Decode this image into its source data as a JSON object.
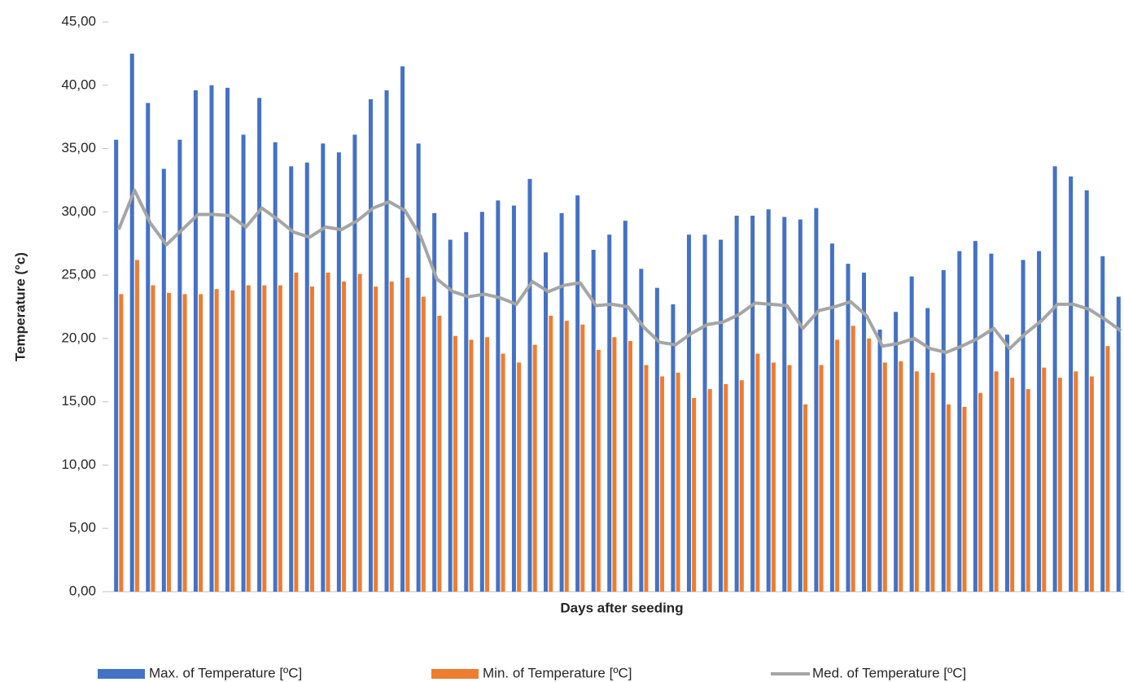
{
  "chart_data": {
    "type": "bar-line",
    "x_label": "Days after seeding",
    "y_label": "Temperature (°c)",
    "categories": [
      null,
      null,
      null,
      null,
      null,
      null,
      null,
      null,
      null,
      null,
      null,
      null,
      null,
      null,
      null,
      null,
      null,
      null,
      null,
      null,
      null,
      null,
      null,
      null,
      null,
      null,
      null,
      null,
      null,
      null,
      null,
      null,
      null,
      null,
      null,
      null,
      null,
      null,
      null,
      null,
      null,
      null,
      null,
      null,
      null,
      null,
      null,
      null,
      null,
      null,
      null,
      null,
      null,
      null,
      null,
      null,
      null,
      null,
      null,
      null,
      null,
      null,
      null,
      null
    ],
    "series": [
      {
        "name": "Max. of Temperature [ºC]",
        "type": "bar",
        "color": "#4472c4",
        "values": [
          35.7,
          42.5,
          38.6,
          33.4,
          35.7,
          39.6,
          40.0,
          39.8,
          36.1,
          39.0,
          35.5,
          33.6,
          33.9,
          35.4,
          34.7,
          36.1,
          38.9,
          39.6,
          41.5,
          35.4,
          29.9,
          27.8,
          28.4,
          30.0,
          30.9,
          30.5,
          32.6,
          26.8,
          29.9,
          31.3,
          27.0,
          28.2,
          29.3,
          25.5,
          24.0,
          22.7,
          28.2,
          28.2,
          27.8,
          29.7,
          29.7,
          30.2,
          29.6,
          29.4,
          30.3,
          27.5,
          25.9,
          25.2,
          20.7,
          22.1,
          24.9,
          22.4,
          25.4,
          26.9,
          27.7,
          26.7,
          20.3,
          26.2,
          26.9,
          33.6,
          32.8,
          31.7,
          26.5,
          23.3
        ]
      },
      {
        "name": "Min. of Temperature [ºC]",
        "type": "bar",
        "color": "#ed7d31",
        "values": [
          23.5,
          26.2,
          24.2,
          23.6,
          23.5,
          23.5,
          23.9,
          23.8,
          24.2,
          24.2,
          24.2,
          25.2,
          24.1,
          25.2,
          24.5,
          25.1,
          24.1,
          24.5,
          24.8,
          23.3,
          21.8,
          20.2,
          19.9,
          20.1,
          18.8,
          18.1,
          19.5,
          21.8,
          21.4,
          21.1,
          19.1,
          20.1,
          19.8,
          17.9,
          17.0,
          17.3,
          15.3,
          16.0,
          16.4,
          16.7,
          18.8,
          18.1,
          17.9,
          14.8,
          17.9,
          19.9,
          21.0,
          20.0,
          18.1,
          18.2,
          17.4,
          17.3,
          14.8,
          14.6,
          15.7,
          17.4,
          16.9,
          16.0,
          17.7,
          16.9,
          17.4,
          17.0,
          19.4,
          null
        ]
      },
      {
        "name": "Med. of Temperature [ºC]",
        "type": "line",
        "color": "#a5a5a5",
        "values": [
          28.6,
          31.7,
          29.1,
          27.4,
          28.6,
          29.8,
          29.8,
          29.7,
          28.8,
          30.3,
          29.4,
          28.4,
          28.0,
          28.8,
          28.6,
          29.3,
          30.3,
          30.8,
          30.1,
          28.0,
          24.7,
          23.7,
          23.3,
          23.5,
          23.2,
          22.7,
          24.5,
          23.7,
          24.2,
          24.4,
          22.6,
          22.7,
          22.5,
          20.9,
          19.7,
          19.5,
          20.4,
          21.1,
          21.3,
          21.9,
          22.8,
          22.7,
          22.6,
          20.8,
          22.2,
          22.5,
          22.9,
          21.8,
          19.4,
          19.6,
          20.0,
          19.2,
          18.9,
          19.4,
          20.0,
          20.8,
          19.2,
          20.4,
          21.4,
          22.7,
          22.7,
          22.3,
          21.5,
          20.6
        ]
      }
    ],
    "ylim": [
      0,
      45
    ],
    "yticks": [
      {
        "value": 0,
        "label": "0,00"
      },
      {
        "value": 5,
        "label": "5,00"
      },
      {
        "value": 10,
        "label": "10,00"
      },
      {
        "value": 15,
        "label": "15,00"
      },
      {
        "value": 20,
        "label": "20,00"
      },
      {
        "value": 25,
        "label": "25,00"
      },
      {
        "value": 30,
        "label": "30,00"
      },
      {
        "value": 35,
        "label": "35,00"
      },
      {
        "value": 40,
        "label": "40,00"
      },
      {
        "value": 45,
        "label": "45,00"
      }
    ],
    "grid": false,
    "legend": "bottom"
  }
}
